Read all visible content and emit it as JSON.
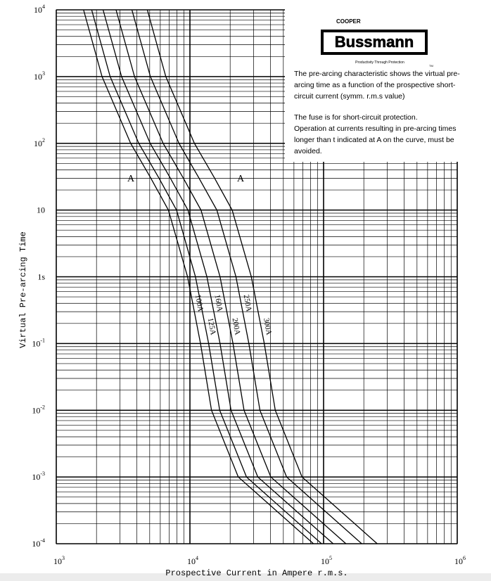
{
  "chart_data": {
    "type": "line",
    "y_label": "Virtual Pre-arcing Time",
    "x_label": "Prospective Current in Ampere r.m.s.",
    "log_x": true,
    "log_y": true,
    "grid": true,
    "color": "#000000",
    "xlim": [
      1000,
      1000000
    ],
    "xticks": [
      {
        "value": 1000,
        "label": "103"
      },
      {
        "value": 10000,
        "label": "104"
      },
      {
        "value": 100000,
        "label": "105"
      },
      {
        "value": 1000000,
        "label": "106"
      }
    ],
    "ylim": [
      0.0001,
      10000
    ],
    "yticks": [
      {
        "value": 0.0001,
        "label": "10-4"
      },
      {
        "value": 0.001,
        "label": "10-3"
      },
      {
        "value": 0.01,
        "label": "10-2"
      },
      {
        "value": 0.1,
        "label": "10-1"
      },
      {
        "value": 1,
        "label": "1s"
      },
      10,
      {
        "value": 100,
        "label": "102"
      },
      {
        "value": 1000,
        "label": "103"
      },
      {
        "value": 10000,
        "label": "104"
      }
    ],
    "series": [
      {
        "name": "100A",
        "x": [
          1600,
          2200,
          3600,
          5100,
          6900,
          9600,
          12000,
          14500,
          23000,
          84000
        ],
        "values": [
          10000,
          1000,
          100,
          30,
          10,
          1,
          0.1,
          0.01,
          0.001,
          0.0001
        ]
      },
      {
        "name": "125A",
        "x": [
          1840,
          2530,
          4140,
          5870,
          7940,
          11000,
          13800,
          16700,
          26500,
          96600
        ],
        "values": [
          10000,
          1000,
          100,
          30,
          10,
          1,
          0.1,
          0.01,
          0.001,
          0.0001
        ]
      },
      {
        "name": "160A",
        "x": [
          2240,
          3080,
          5040,
          7140,
          9660,
          13400,
          16800,
          20300,
          32200,
          118000
        ],
        "values": [
          10000,
          1000,
          100,
          30,
          10,
          1,
          0.1,
          0.01,
          0.001,
          0.0001
        ]
      },
      {
        "name": "200A",
        "x": [
          2800,
          3850,
          6300,
          8930,
          12100,
          16800,
          21000,
          25400,
          40300,
          147000
        ],
        "values": [
          10000,
          1000,
          100,
          30,
          10,
          1,
          0.1,
          0.01,
          0.001,
          0.0001
        ]
      },
      {
        "name": "250A",
        "x": [
          3680,
          5060,
          8280,
          11700,
          15900,
          22100,
          27600,
          33400,
          52900,
          193000
        ],
        "values": [
          10000,
          1000,
          100,
          30,
          10,
          1,
          0.1,
          0.01,
          0.001,
          0.0001
        ]
      },
      {
        "name": "300A",
        "x": [
          4800,
          6600,
          10800,
          15300,
          20700,
          28800,
          36000,
          43500,
          69000,
          252000
        ],
        "values": [
          10000,
          1000,
          100,
          30,
          10,
          1,
          0.1,
          0.01,
          0.001,
          0.0001
        ]
      }
    ],
    "annotations": [
      "A",
      "A"
    ],
    "brand": {
      "top": "COOPER",
      "name": "Bussmann",
      "tagline": "Productivity Through Protection",
      "tm": "TM"
    },
    "notes": [
      "The pre-arcing characteristic shows the virtual pre-",
      "arcing time as a function of the prospective short-",
      "circuit current (symm. r.m.s value)",
      "The fuse is for short-circuit protection.",
      "Operation at currents resulting in pre-arcing times",
      "longer than t  indicated at A on the curve, must be",
      "avoided."
    ]
  }
}
